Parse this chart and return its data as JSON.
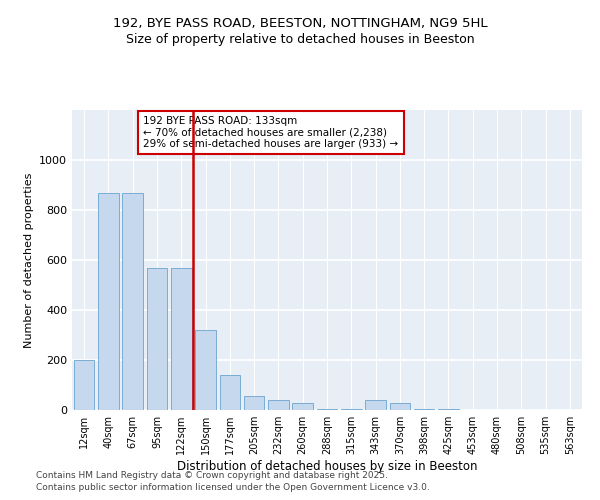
{
  "title1": "192, BYE PASS ROAD, BEESTON, NOTTINGHAM, NG9 5HL",
  "title2": "Size of property relative to detached houses in Beeston",
  "xlabel": "Distribution of detached houses by size in Beeston",
  "ylabel": "Number of detached properties",
  "bar_color": "#c5d8ed",
  "bar_edgecolor": "#7aadd4",
  "vline_color": "#cc0000",
  "annotation_text": "192 BYE PASS ROAD: 133sqm\n← 70% of detached houses are smaller (2,238)\n29% of semi-detached houses are larger (933) →",
  "annotation_box_color": "#cc0000",
  "footer1": "Contains HM Land Registry data © Crown copyright and database right 2025.",
  "footer2": "Contains public sector information licensed under the Open Government Licence v3.0.",
  "categories": [
    "12sqm",
    "40sqm",
    "67sqm",
    "95sqm",
    "122sqm",
    "150sqm",
    "177sqm",
    "205sqm",
    "232sqm",
    "260sqm",
    "288sqm",
    "315sqm",
    "343sqm",
    "370sqm",
    "398sqm",
    "425sqm",
    "453sqm",
    "480sqm",
    "508sqm",
    "535sqm",
    "563sqm"
  ],
  "values": [
    200,
    870,
    870,
    570,
    570,
    320,
    140,
    55,
    40,
    30,
    5,
    5,
    40,
    30,
    5,
    5,
    2,
    2,
    1,
    1,
    1
  ],
  "ylim": [
    0,
    1200
  ],
  "yticks": [
    0,
    200,
    400,
    600,
    800,
    1000
  ],
  "background_color": "#e8eef5",
  "vline_pos": 4.5
}
